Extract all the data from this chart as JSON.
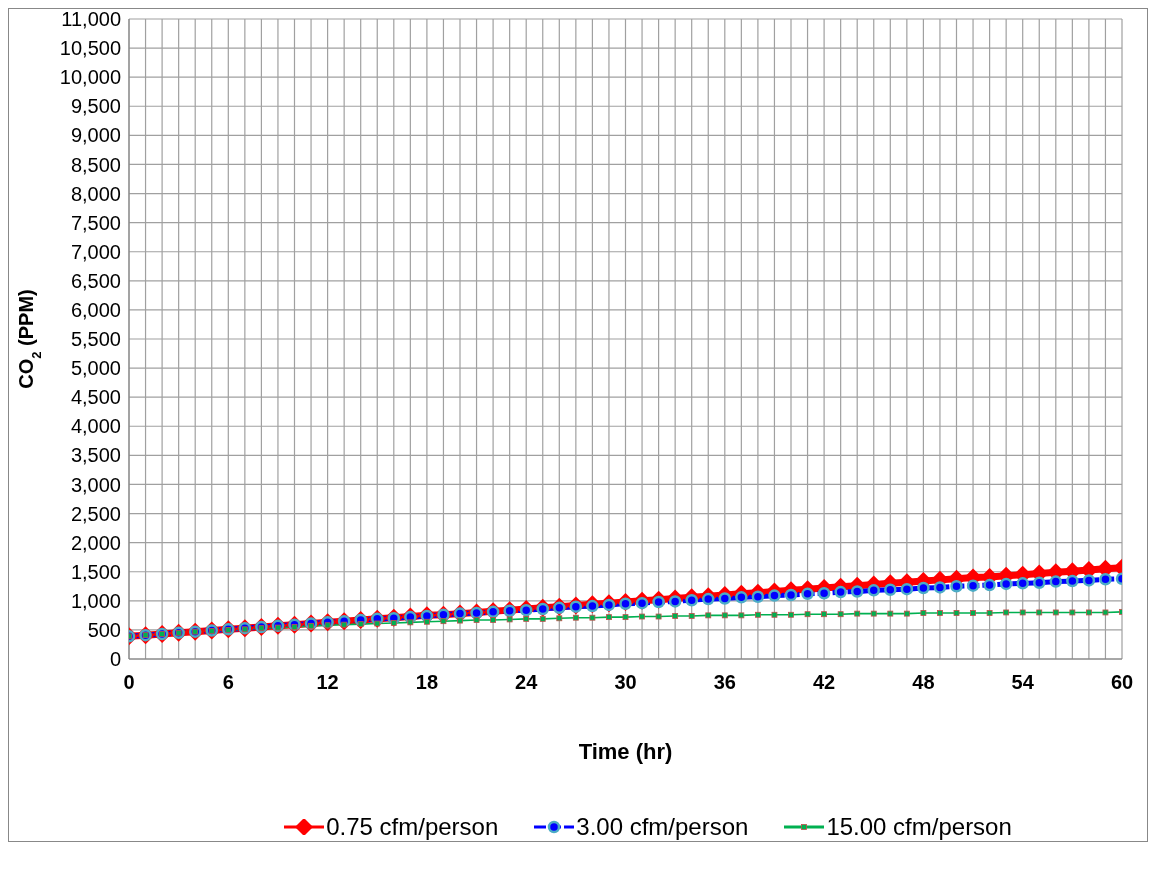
{
  "chart_data": {
    "type": "line",
    "xlabel": "Time (hr)",
    "ylabel": "CO$_{2}$ (PPM)",
    "x": [
      0,
      1,
      2,
      3,
      4,
      5,
      6,
      7,
      8,
      9,
      10,
      11,
      12,
      13,
      14,
      15,
      16,
      17,
      18,
      19,
      20,
      21,
      22,
      23,
      24,
      25,
      26,
      27,
      28,
      29,
      30,
      31,
      32,
      33,
      34,
      35,
      36,
      37,
      38,
      39,
      40,
      41,
      42,
      43,
      44,
      45,
      46,
      47,
      48,
      49,
      50,
      51,
      52,
      53,
      54,
      55,
      56,
      57,
      58,
      59,
      60
    ],
    "series": [
      {
        "name": "0.75 cfm/person",
        "color": "#ff0000",
        "marker": "diamond",
        "line_style": "solid",
        "values": [
          390,
          410,
          430,
          450,
          470,
          490,
          510,
          530,
          550,
          570,
          590,
          610,
          630,
          650,
          670,
          690,
          710,
          730,
          750,
          760,
          780,
          800,
          820,
          840,
          860,
          880,
          900,
          920,
          940,
          960,
          980,
          1000,
          1020,
          1040,
          1060,
          1080,
          1100,
          1120,
          1140,
          1160,
          1180,
          1200,
          1220,
          1240,
          1260,
          1280,
          1300,
          1320,
          1340,
          1360,
          1380,
          1400,
          1410,
          1430,
          1450,
          1470,
          1490,
          1510,
          1530,
          1550,
          1570
        ]
      },
      {
        "name": "3.00 cfm/person",
        "color": "#0000ff",
        "marker": "circle",
        "line_style": "dashed",
        "values": [
          390,
          410,
          430,
          450,
          470,
          490,
          510,
          530,
          550,
          570,
          590,
          610,
          630,
          650,
          670,
          690,
          700,
          720,
          740,
          760,
          780,
          790,
          810,
          830,
          840,
          860,
          880,
          900,
          910,
          930,
          950,
          960,
          980,
          990,
          1010,
          1030,
          1040,
          1060,
          1070,
          1090,
          1100,
          1120,
          1130,
          1150,
          1160,
          1180,
          1190,
          1200,
          1220,
          1230,
          1250,
          1260,
          1270,
          1290,
          1300,
          1310,
          1330,
          1340,
          1350,
          1370,
          1380
        ]
      },
      {
        "name": "15.00 cfm/person",
        "color": "#00b050",
        "marker": "square",
        "line_style": "solid",
        "values": [
          390,
          410,
          430,
          450,
          470,
          480,
          500,
          510,
          530,
          540,
          550,
          570,
          580,
          590,
          600,
          610,
          620,
          630,
          640,
          650,
          660,
          670,
          670,
          680,
          690,
          690,
          700,
          710,
          710,
          720,
          720,
          730,
          730,
          740,
          740,
          750,
          750,
          750,
          760,
          760,
          760,
          770,
          770,
          770,
          780,
          780,
          780,
          780,
          790,
          790,
          790,
          790,
          790,
          800,
          800,
          800,
          800,
          800,
          800,
          800,
          810
        ]
      }
    ],
    "xlim": [
      0,
      60
    ],
    "xticks": [
      0,
      {
        "value": 1,
        "label": null
      },
      {
        "value": 2,
        "label": null
      },
      {
        "value": 3,
        "label": null
      },
      {
        "value": 4,
        "label": null
      },
      {
        "value": 5,
        "label": null
      },
      6,
      {
        "value": 7,
        "label": null
      },
      {
        "value": 8,
        "label": null
      },
      {
        "value": 9,
        "label": null
      },
      {
        "value": 10,
        "label": null
      },
      {
        "value": 11,
        "label": null
      },
      12,
      {
        "value": 13,
        "label": null
      },
      {
        "value": 14,
        "label": null
      },
      {
        "value": 15,
        "label": null
      },
      {
        "value": 16,
        "label": null
      },
      {
        "value": 17,
        "label": null
      },
      18,
      {
        "value": 19,
        "label": null
      },
      {
        "value": 20,
        "label": null
      },
      {
        "value": 21,
        "label": null
      },
      {
        "value": 22,
        "label": null
      },
      {
        "value": 23,
        "label": null
      },
      24,
      {
        "value": 25,
        "label": null
      },
      {
        "value": 26,
        "label": null
      },
      {
        "value": 27,
        "label": null
      },
      {
        "value": 28,
        "label": null
      },
      {
        "value": 29,
        "label": null
      },
      30,
      {
        "value": 31,
        "label": null
      },
      {
        "value": 32,
        "label": null
      },
      {
        "value": 33,
        "label": null
      },
      {
        "value": 34,
        "label": null
      },
      {
        "value": 35,
        "label": null
      },
      36,
      {
        "value": 37,
        "label": null
      },
      {
        "value": 38,
        "label": null
      },
      {
        "value": 39,
        "label": null
      },
      {
        "value": 40,
        "label": null
      },
      {
        "value": 41,
        "label": null
      },
      42,
      {
        "value": 43,
        "label": null
      },
      {
        "value": 44,
        "label": null
      },
      {
        "value": 45,
        "label": null
      },
      {
        "value": 46,
        "label": null
      },
      {
        "value": 47,
        "label": null
      },
      48,
      {
        "value": 49,
        "label": null
      },
      {
        "value": 50,
        "label": null
      },
      {
        "value": 51,
        "label": null
      },
      {
        "value": 52,
        "label": null
      },
      {
        "value": 53,
        "label": null
      },
      54,
      {
        "value": 55,
        "label": null
      },
      {
        "value": 56,
        "label": null
      },
      {
        "value": 57,
        "label": null
      },
      {
        "value": 58,
        "label": null
      },
      {
        "value": 59,
        "label": null
      },
      60
    ],
    "ylim": [
      0,
      11000
    ],
    "yticks": [
      0,
      500,
      {
        "value": 1000,
        "label": "1,000"
      },
      {
        "value": 1500,
        "label": "1,500"
      },
      {
        "value": 2000,
        "label": "2,000"
      },
      {
        "value": 2500,
        "label": "2,500"
      },
      {
        "value": 3000,
        "label": "3,000"
      },
      {
        "value": 3500,
        "label": "3,500"
      },
      {
        "value": 4000,
        "label": "4,000"
      },
      {
        "value": 4500,
        "label": "4,500"
      },
      {
        "value": 5000,
        "label": "5,000"
      },
      {
        "value": 5500,
        "label": "5,500"
      },
      {
        "value": 6000,
        "label": "6,000"
      },
      {
        "value": 6500,
        "label": "6,500"
      },
      {
        "value": 7000,
        "label": "7,000"
      },
      {
        "value": 7500,
        "label": "7,500"
      },
      {
        "value": 8000,
        "label": "8,000"
      },
      {
        "value": 8500,
        "label": "8,500"
      },
      {
        "value": 9000,
        "label": "9,000"
      },
      {
        "value": 9500,
        "label": "9,500"
      },
      {
        "value": 10000,
        "label": "10,000"
      },
      {
        "value": 10500,
        "label": "10,500"
      },
      {
        "value": 11000,
        "label": "11,000"
      }
    ],
    "grid": true,
    "legend": "bottom"
  }
}
